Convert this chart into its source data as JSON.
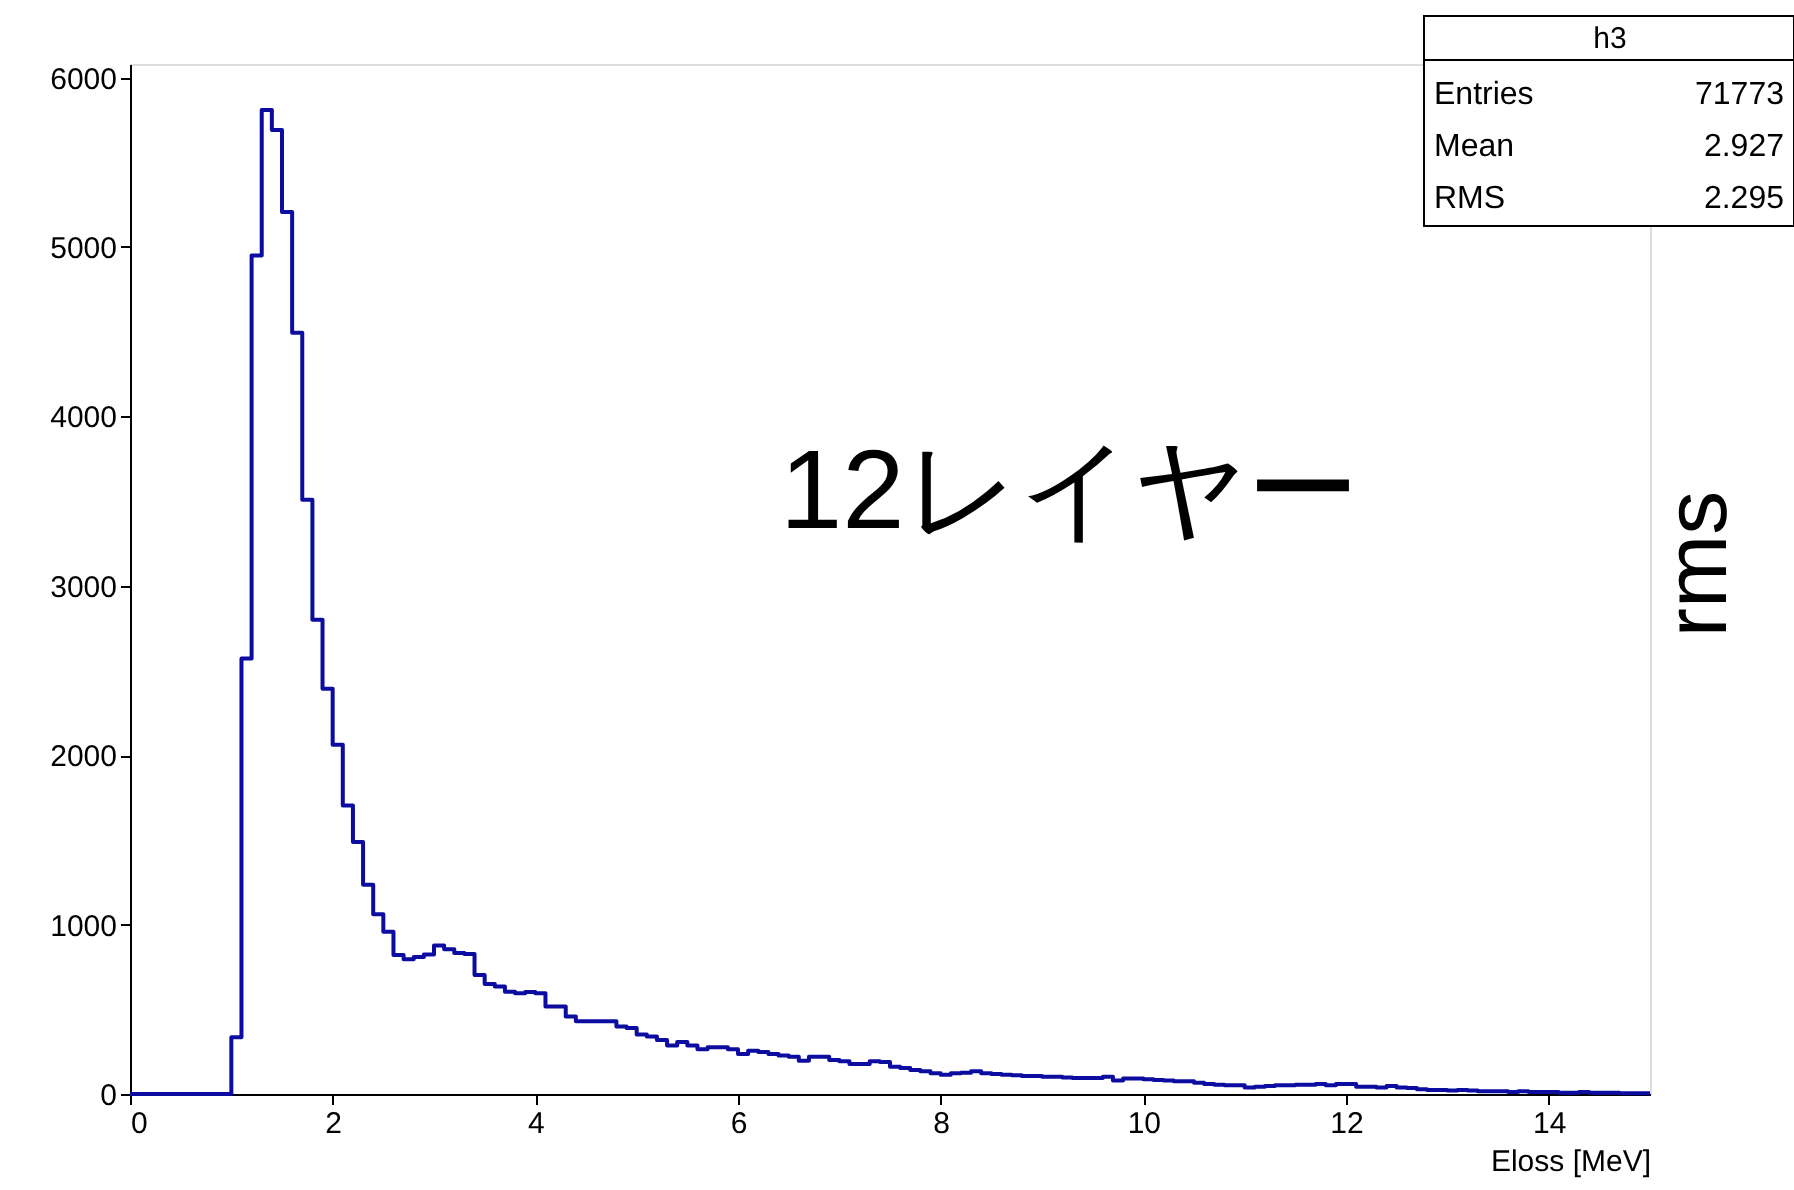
{
  "chart_data": {
    "type": "histogram",
    "xlabel": "Eloss [MeV]",
    "color": "#0c0ca0",
    "bins": [
      0.0,
      0.1,
      0.2,
      0.3,
      0.4,
      0.5,
      0.6,
      0.7,
      0.8,
      0.9,
      1.0,
      1.1,
      1.2,
      1.3,
      1.4,
      1.5,
      1.6,
      1.7,
      1.8,
      1.9,
      2.0,
      2.1,
      2.2,
      2.3,
      2.4,
      2.5,
      2.6,
      2.7,
      2.8,
      2.9,
      3.0,
      3.1,
      3.2,
      3.3,
      3.4,
      3.5,
      3.6,
      3.7,
      3.8,
      3.9,
      4.0,
      4.1,
      4.2,
      4.3,
      4.4,
      4.5,
      4.6,
      4.7,
      4.8,
      4.9,
      5.0,
      5.1,
      5.2,
      5.3,
      5.4,
      5.5,
      5.6,
      5.7,
      5.8,
      5.9,
      6.0,
      6.1,
      6.2,
      6.3,
      6.4,
      6.5,
      6.6,
      6.7,
      6.8,
      6.9,
      7.0,
      7.1,
      7.2,
      7.3,
      7.4,
      7.5,
      7.6,
      7.7,
      7.8,
      7.9,
      8.0,
      8.1,
      8.2,
      8.3,
      8.4,
      8.5,
      8.6,
      8.7,
      8.8,
      8.9,
      9.0,
      9.1,
      9.2,
      9.3,
      9.4,
      9.5,
      9.6,
      9.7,
      9.8,
      9.9,
      10.0,
      10.1,
      10.2,
      10.3,
      10.4,
      10.5,
      10.6,
      10.7,
      10.8,
      10.9,
      11.0,
      11.1,
      11.2,
      11.3,
      11.4,
      11.5,
      11.6,
      11.7,
      11.8,
      11.9,
      12.0,
      12.1,
      12.2,
      12.3,
      12.4,
      12.5,
      12.6,
      12.7,
      12.8,
      12.9,
      13.0,
      13.1,
      13.2,
      13.3,
      13.4,
      13.5,
      13.6,
      13.7,
      13.8,
      13.9,
      14.0,
      14.1,
      14.2,
      14.3,
      14.4,
      14.5,
      14.6,
      14.7,
      14.8,
      14.9,
      15.0
    ],
    "values": [
      0,
      0,
      0,
      0,
      0,
      0,
      0,
      0,
      0,
      0,
      335,
      2571,
      4950,
      5808,
      5690,
      5206,
      4493,
      3508,
      2799,
      2392,
      2062,
      1703,
      1488,
      1235,
      1061,
      958,
      820,
      795,
      808,
      823,
      876,
      855,
      832,
      826,
      702,
      650,
      634,
      604,
      594,
      602,
      594,
      516,
      516,
      457,
      429,
      429,
      429,
      429,
      398,
      390,
      351,
      339,
      319,
      287,
      307,
      287,
      264,
      276,
      276,
      264,
      236,
      256,
      248,
      236,
      228,
      220,
      197,
      220,
      220,
      200,
      193,
      177,
      177,
      193,
      189,
      161,
      154,
      142,
      134,
      122,
      114,
      122,
      126,
      134,
      122,
      118,
      114,
      110,
      106,
      106,
      102,
      102,
      98,
      94,
      94,
      94,
      102,
      79,
      91,
      91,
      87,
      83,
      79,
      75,
      75,
      67,
      59,
      55,
      51,
      51,
      39,
      43,
      47,
      51,
      51,
      55,
      55,
      59,
      51,
      59,
      59,
      43,
      43,
      39,
      47,
      39,
      35,
      28,
      24,
      24,
      20,
      24,
      20,
      16,
      16,
      16,
      12,
      16,
      12,
      12,
      12,
      8,
      8,
      12,
      8,
      8,
      8,
      4,
      4,
      4
    ],
    "xlim": [
      0,
      15
    ],
    "ylim": [
      0,
      6080
    ],
    "xticks": [
      0,
      2,
      4,
      6,
      8,
      10,
      12,
      14
    ],
    "yticks": [
      0,
      1000,
      2000,
      3000,
      4000,
      5000,
      6000
    ],
    "grid": false,
    "annotations": [
      "12レイヤー",
      "rms",
      "h3",
      "Entries",
      "71773",
      "Mean",
      "2.927",
      "RMS",
      "2.295"
    ]
  }
}
